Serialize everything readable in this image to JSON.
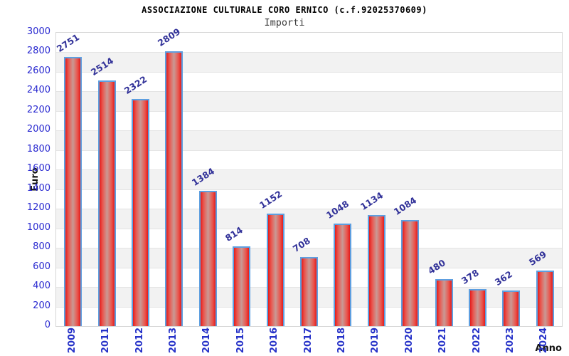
{
  "page": {
    "background": "#ffffff"
  },
  "chart_data": {
    "type": "bar",
    "title": "ASSOCIAZIONE CULTURALE CORO ERNICO (c.f.92025370609)",
    "subtitle": "Importi",
    "xlabel": "Anno",
    "ylabel": "Euro",
    "categories": [
      "2009",
      "2011",
      "2012",
      "2013",
      "2014",
      "2015",
      "2016",
      "2017",
      "2018",
      "2019",
      "2020",
      "2021",
      "2022",
      "2023",
      "2024"
    ],
    "values": [
      2751,
      2514,
      2322,
      2809,
      1384,
      814,
      1152,
      708,
      1048,
      1134,
      1084,
      480,
      378,
      362,
      569
    ],
    "ylim": [
      0,
      3000
    ],
    "yticks": [
      0,
      200,
      400,
      600,
      800,
      1000,
      1200,
      1400,
      1600,
      1800,
      2000,
      2200,
      2400,
      2600,
      2800,
      3000
    ],
    "grid": "horizontal-alternating-bands",
    "legend": "none",
    "colors": {
      "bar_fill_edge": "#e21d1d",
      "bar_fill_center": "#c99a95",
      "bar_border": "#5e9fe0",
      "value_label": "#323299",
      "tick_label": "#2a2ad0",
      "band_gray": "#f2f2f2",
      "axis_title": "#141414"
    }
  }
}
